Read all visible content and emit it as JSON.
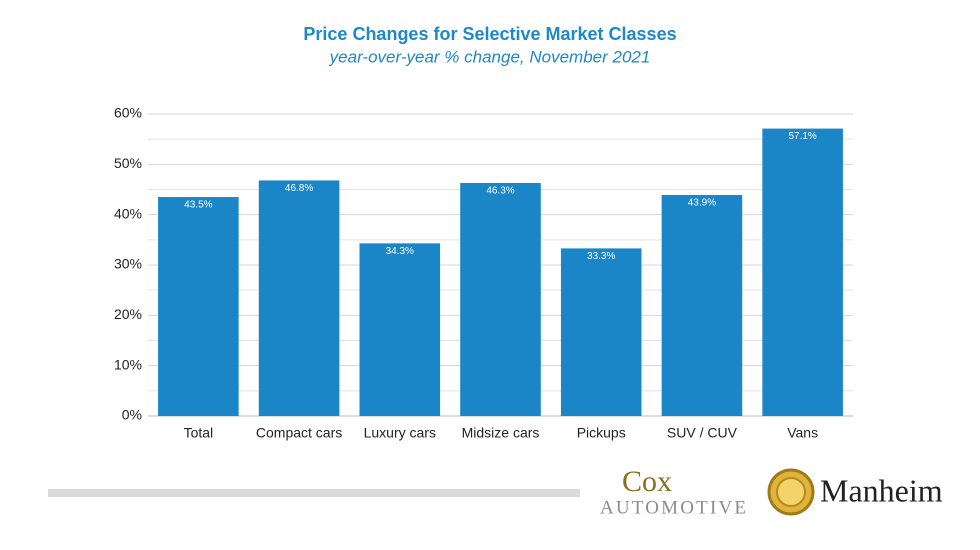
{
  "chart_data": {
    "type": "bar",
    "title": "Price Changes for Selective Market Classes",
    "subtitle": "year-over-year % change, November 2021",
    "categories": [
      "Total",
      "Compact cars",
      "Luxury cars",
      "Midsize cars",
      "Pickups",
      "SUV / CUV",
      "Vans"
    ],
    "values": [
      43.5,
      46.8,
      34.3,
      46.3,
      33.3,
      43.9,
      57.1
    ],
    "value_labels": [
      "43.5%",
      "46.8%",
      "34.3%",
      "46.3%",
      "33.3%",
      "43.9%",
      "57.1%"
    ],
    "color": "#1a86c8",
    "ylim": [
      0,
      60
    ],
    "yticks": [
      {
        "value": 0,
        "label": "0%"
      },
      {
        "value": 10,
        "label": "10%"
      },
      {
        "value": 20,
        "label": "20%"
      },
      {
        "value": 30,
        "label": "30%"
      },
      {
        "value": 40,
        "label": "40%"
      },
      {
        "value": 50,
        "label": "50%"
      },
      {
        "value": 60,
        "label": "60%"
      }
    ],
    "minor_yticks": [
      5,
      15,
      25,
      35,
      45,
      55
    ],
    "grid": true
  },
  "logos": {
    "cox": "Cox",
    "automotive": "AUTOMOTIVE",
    "manheim": "Manheim"
  }
}
